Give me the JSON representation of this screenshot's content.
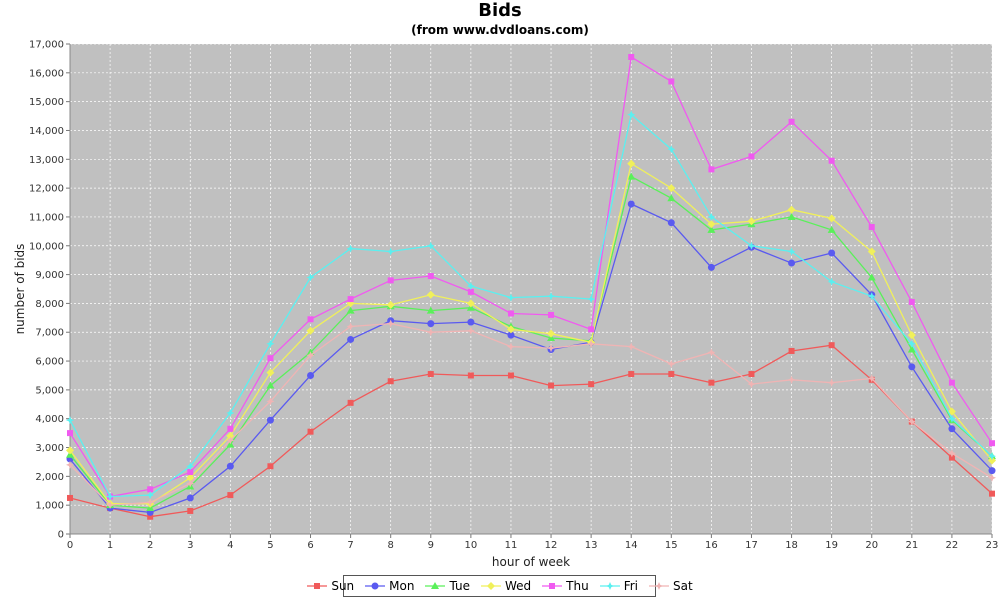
{
  "chart_data": {
    "type": "line",
    "title": "Bids",
    "subtitle": "(from www.dvdloans.com)",
    "xlabel": "hour of week",
    "ylabel": "number of bids",
    "x": [
      0,
      1,
      2,
      3,
      4,
      5,
      6,
      7,
      8,
      9,
      10,
      11,
      12,
      13,
      14,
      15,
      16,
      17,
      18,
      19,
      20,
      21,
      22,
      23
    ],
    "ylim": [
      0,
      17000
    ],
    "yticks": [
      0,
      1000,
      2000,
      3000,
      4000,
      5000,
      6000,
      7000,
      8000,
      9000,
      10000,
      11000,
      12000,
      13000,
      14000,
      15000,
      16000,
      17000
    ],
    "ytick_labels": [
      "0",
      "1,000",
      "2,000",
      "3,000",
      "4,000",
      "5,000",
      "6,000",
      "7,000",
      "8,000",
      "9,000",
      "10,000",
      "11,000",
      "12,000",
      "13,000",
      "14,000",
      "15,000",
      "16,000",
      "17,000"
    ],
    "grid": true,
    "legend_position": "bottom",
    "series": [
      {
        "name": "Sun",
        "color": "#f05a5a",
        "marker": "square",
        "values": [
          1250,
          900,
          600,
          800,
          1350,
          2350,
          3550,
          4550,
          5300,
          5550,
          5500,
          5500,
          5150,
          5200,
          5550,
          5550,
          5250,
          5550,
          6350,
          6550,
          5350,
          3900,
          2650,
          1400
        ]
      },
      {
        "name": "Mon",
        "color": "#5a5af0",
        "marker": "circle",
        "values": [
          2600,
          900,
          750,
          1250,
          2350,
          3950,
          5500,
          6750,
          7400,
          7300,
          7350,
          6900,
          6400,
          6650,
          11450,
          10800,
          9250,
          9950,
          9400,
          9750,
          8300,
          5800,
          3650,
          2200
        ]
      },
      {
        "name": "Tue",
        "color": "#5af05a",
        "marker": "triangle",
        "values": [
          2750,
          1000,
          900,
          1650,
          3100,
          5150,
          6300,
          7750,
          7900,
          7750,
          7850,
          7200,
          6800,
          6700,
          12400,
          11650,
          10550,
          10750,
          11000,
          10550,
          8900,
          6400,
          3950,
          2700
        ]
      },
      {
        "name": "Wed",
        "color": "#f0f05a",
        "marker": "diamond",
        "values": [
          2900,
          1050,
          1050,
          1950,
          3400,
          5600,
          7050,
          8000,
          7950,
          8300,
          8000,
          7100,
          6950,
          6650,
          12850,
          12000,
          10750,
          10850,
          11250,
          10950,
          9800,
          6900,
          4250,
          2550
        ]
      },
      {
        "name": "Thu",
        "color": "#f05af0",
        "marker": "square",
        "values": [
          3500,
          1300,
          1550,
          2150,
          3650,
          6100,
          7450,
          8150,
          8800,
          8950,
          8400,
          7650,
          7600,
          7100,
          16550,
          15700,
          12650,
          13100,
          14300,
          12950,
          10650,
          8050,
          5250,
          3150
        ]
      },
      {
        "name": "Fri",
        "color": "#5af0f0",
        "marker": "star",
        "values": [
          3950,
          1300,
          1350,
          2350,
          4200,
          6600,
          8900,
          9900,
          9800,
          10000,
          8600,
          8200,
          8250,
          8150,
          14550,
          13350,
          11000,
          10000,
          9800,
          8750,
          8250,
          6600,
          4000,
          2700
        ]
      },
      {
        "name": "Sat",
        "color": "#f0b4b4",
        "marker": "star",
        "values": [
          2400,
          1000,
          1100,
          1750,
          3250,
          4600,
          6200,
          7200,
          7300,
          7000,
          7050,
          6500,
          6450,
          6600,
          6500,
          5900,
          6300,
          5200,
          5350,
          5250,
          5400,
          3900,
          2800,
          1950
        ]
      }
    ]
  }
}
